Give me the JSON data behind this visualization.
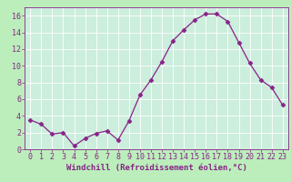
{
  "x": [
    0,
    1,
    2,
    3,
    4,
    5,
    6,
    7,
    8,
    9,
    10,
    11,
    12,
    13,
    14,
    15,
    16,
    17,
    18,
    19,
    20,
    21,
    22,
    23
  ],
  "y": [
    3.5,
    3.0,
    1.8,
    2.0,
    0.4,
    1.3,
    1.9,
    2.2,
    1.1,
    3.4,
    6.5,
    8.3,
    10.5,
    13.0,
    14.3,
    15.5,
    16.2,
    16.2,
    15.3,
    12.8,
    10.3,
    8.3,
    7.4,
    5.3
  ],
  "line_color": "#882288",
  "marker": "D",
  "marker_size": 2.5,
  "bg_color": "#bbeebb",
  "plot_bg_color": "#cceedd",
  "grid_color": "#aaddcc",
  "xlabel": "Windchill (Refroidissement éolien,°C)",
  "xlim": [
    -0.5,
    23.5
  ],
  "ylim": [
    0,
    17
  ],
  "xticks": [
    0,
    1,
    2,
    3,
    4,
    5,
    6,
    7,
    8,
    9,
    10,
    11,
    12,
    13,
    14,
    15,
    16,
    17,
    18,
    19,
    20,
    21,
    22,
    23
  ],
  "yticks": [
    0,
    2,
    4,
    6,
    8,
    10,
    12,
    14,
    16
  ],
  "label_color": "#882288",
  "label_fontsize": 6.5,
  "tick_fontsize": 6.0
}
